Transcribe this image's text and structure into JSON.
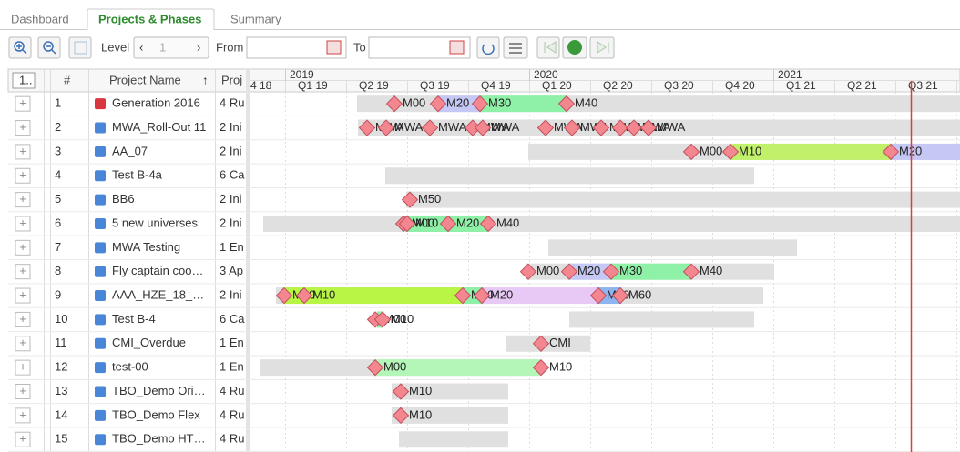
{
  "tabs": [
    "Dashboard",
    "Projects & Phases",
    "Summary"
  ],
  "toolbar": {
    "level_label": "Level",
    "level_value": "1",
    "from_label": "From",
    "to_label": "To"
  },
  "grid": {
    "headers": [
      "1..",
      "#",
      "Project Name",
      "Proj"
    ],
    "years": [
      "2019",
      "2020",
      "2021"
    ],
    "quarters": [
      "4 18",
      "Q1 19",
      "Q2 19",
      "Q3 19",
      "Q4 19",
      "Q1 20",
      "Q2 20",
      "Q3 20",
      "Q4 20",
      "Q1 21",
      "Q2 21",
      "Q3 21"
    ],
    "rows": [
      {
        "number": 1,
        "name": "Generation 2016",
        "phase": "4 Ru",
        "milestones": [
          "M00",
          "M20",
          "M30",
          "M40"
        ]
      },
      {
        "number": 2,
        "name": "MWA_Roll-Out 11",
        "phase": "2 Ini",
        "milestones": [
          "MWA",
          "MWA",
          "MWA",
          "MWA",
          "MWA",
          "MWA",
          "MWA",
          "MWA",
          "MWA",
          "MWA",
          "MWA"
        ]
      },
      {
        "number": 3,
        "name": "AA_07",
        "phase": "2 Ini",
        "milestones": [
          "M00",
          "M10",
          "M20"
        ]
      },
      {
        "number": 4,
        "name": "Test B-4a",
        "phase": "6 Ca",
        "milestones": []
      },
      {
        "number": 5,
        "name": "BB6",
        "phase": "2 Ini",
        "milestones": [
          "M50"
        ]
      },
      {
        "number": 6,
        "name": "5 new universes",
        "phase": "2 Ini",
        "milestones": [
          "M00",
          "M10",
          "M20",
          "M40"
        ]
      },
      {
        "number": 7,
        "name": "MWA Testing",
        "phase": "1 En",
        "milestones": []
      },
      {
        "number": 8,
        "name": "Fly captain coo…",
        "phase": "3 Ap",
        "milestones": [
          "M00",
          "M20",
          "M30",
          "M40"
        ]
      },
      {
        "number": 9,
        "name": "AAA_HZE_18_…",
        "phase": "2 Ini",
        "milestones": [
          "M00",
          "M10",
          "M00",
          "M20",
          "M50",
          "M60"
        ]
      },
      {
        "number": 10,
        "name": "Test B-4",
        "phase": "6 Ca",
        "milestones": [
          "M00",
          "M10"
        ]
      },
      {
        "number": 11,
        "name": "CMI_Overdue",
        "phase": "1 En",
        "milestones": [
          "CMI"
        ]
      },
      {
        "number": 12,
        "name": "test-00",
        "phase": "1 En",
        "milestones": [
          "M00",
          "M10"
        ]
      },
      {
        "number": 13,
        "name": "TBO_Demo Ori…",
        "phase": "4 Ru",
        "milestones": [
          "M10"
        ]
      },
      {
        "number": 14,
        "name": "TBO_Demo Flex",
        "phase": "4 Ru",
        "milestones": [
          "M10"
        ]
      },
      {
        "number": 15,
        "name": "TBO_Demo HT…",
        "phase": "4 Ru",
        "milestones": []
      }
    ]
  }
}
